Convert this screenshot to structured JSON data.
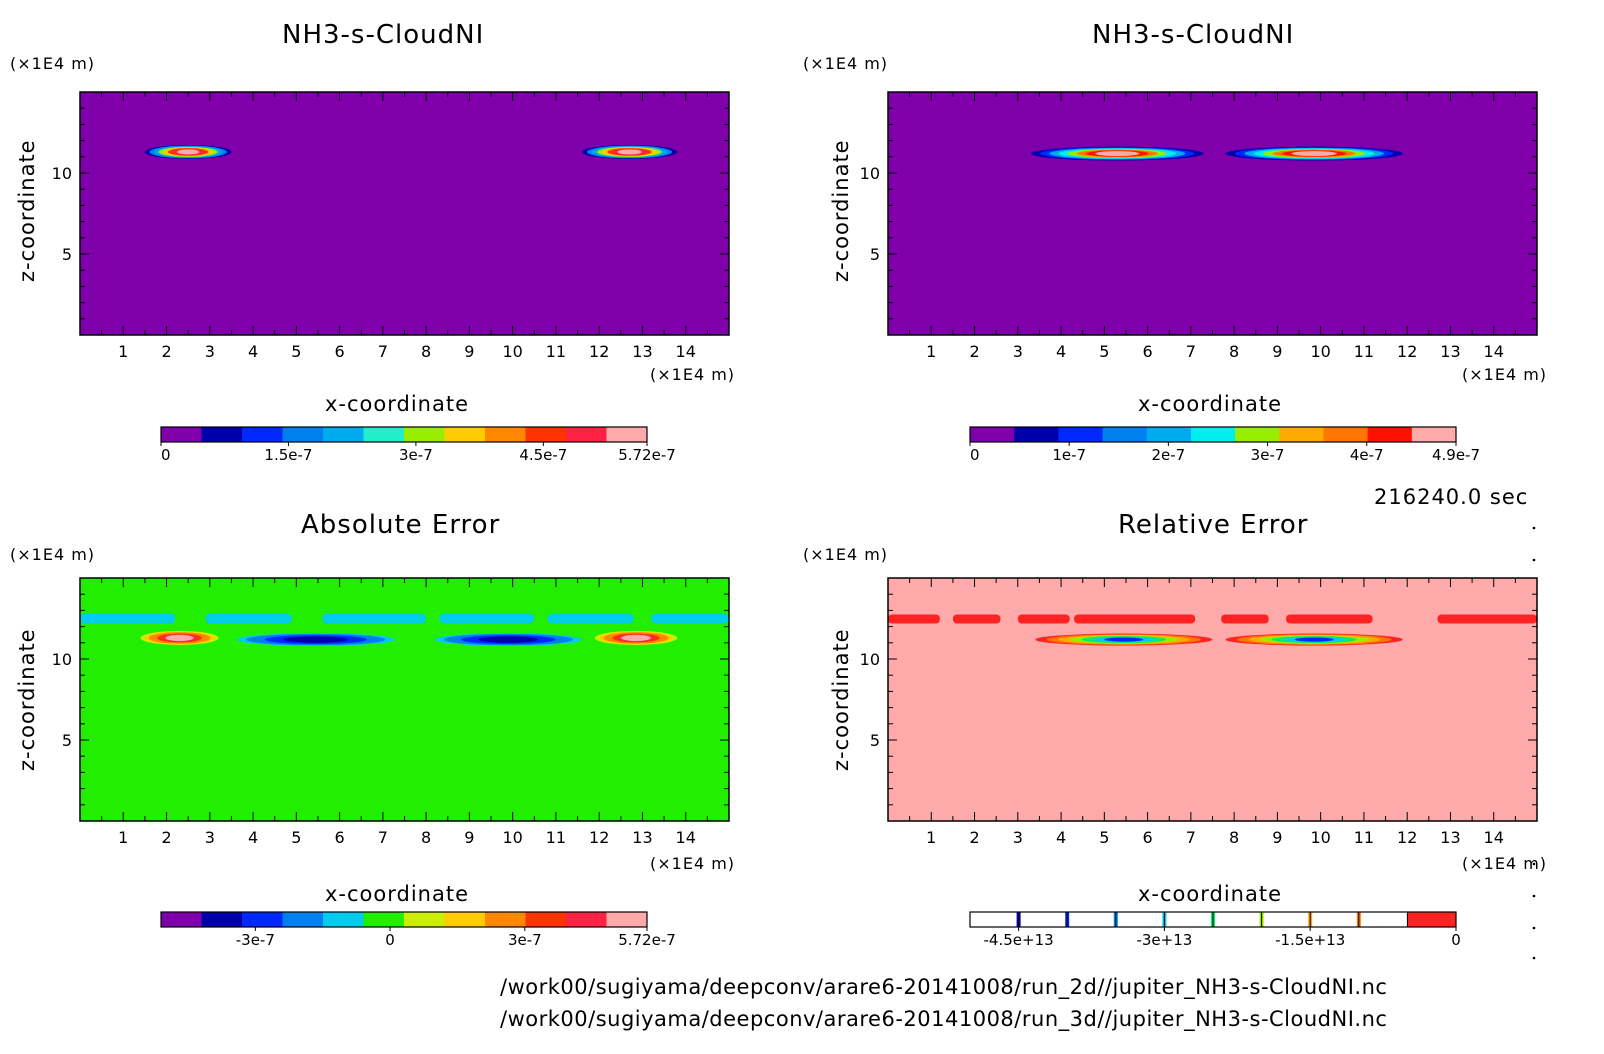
{
  "time_label": "216240.0 sec",
  "footer": {
    "path_2d": "/work00/sugiyama/deepconv/arare6-20141008/run_2d//jupiter_NH3-s-CloudNI.nc",
    "path_3d": "/work00/sugiyama/deepconv/arare6-20141008/run_3d//jupiter_NH3-s-CloudNI.nc"
  },
  "chart_data": [
    {
      "type": "heatmap",
      "title": "NH3-s-CloudNI",
      "xlabel": "x-coordinate",
      "ylabel": "z-coordinate",
      "x_unit": "(×1E4 m)",
      "y_unit": "(×1E4 m)",
      "xlim": [
        0,
        15
      ],
      "ylim": [
        0,
        15
      ],
      "x_ticks": [
        1,
        2,
        3,
        4,
        5,
        6,
        7,
        8,
        9,
        10,
        11,
        12,
        13,
        14
      ],
      "y_ticks": [
        5,
        10
      ],
      "background_color": "#7f00aa",
      "features": [
        {
          "x_range": [
            1.5,
            3.5
          ],
          "z": 11.3,
          "peak": 5.72e-07
        },
        {
          "x_range": [
            11.6,
            13.8
          ],
          "z": 11.3,
          "peak": 5.72e-07
        }
      ],
      "colorbar": {
        "colors": [
          "#7f00aa",
          "#0000aa",
          "#0028ff",
          "#0080ee",
          "#00aaee",
          "#22eecc",
          "#99ee00",
          "#ffcc00",
          "#ff8800",
          "#ff3300",
          "#ff2244",
          "#ffaaaa"
        ],
        "tick_labels": [
          "0",
          "1.5e-7",
          "3e-7",
          "4.5e-7",
          "5.72e-7"
        ],
        "tick_values": [
          0,
          1.5e-07,
          3e-07,
          4.5e-07,
          5.72e-07
        ],
        "vmin": 0,
        "vmax": 5.72e-07
      }
    },
    {
      "type": "heatmap",
      "title": "NH3-s-CloudNI",
      "xlabel": "x-coordinate",
      "ylabel": "z-coordinate",
      "x_unit": "(×1E4 m)",
      "y_unit": "(×1E4 m)",
      "xlim": [
        0,
        15
      ],
      "ylim": [
        0,
        15
      ],
      "x_ticks": [
        1,
        2,
        3,
        4,
        5,
        6,
        7,
        8,
        9,
        10,
        11,
        12,
        13,
        14
      ],
      "y_ticks": [
        5,
        10
      ],
      "background_color": "#7f00aa",
      "features": [
        {
          "x_range": [
            3.3,
            7.3
          ],
          "z": 11.2,
          "peak": 4.9e-07
        },
        {
          "x_range": [
            7.8,
            11.9
          ],
          "z": 11.2,
          "peak": 4.9e-07
        }
      ],
      "colorbar": {
        "colors": [
          "#7f00aa",
          "#0000aa",
          "#0028ff",
          "#0080ee",
          "#00aaee",
          "#00eeee",
          "#99ee00",
          "#ffaa00",
          "#ff7700",
          "#ff1100",
          "#ffaaaa"
        ],
        "tick_labels": [
          "0",
          "1e-7",
          "2e-7",
          "3e-7",
          "4e-7",
          "4.9e-7"
        ],
        "tick_values": [
          0,
          1e-07,
          2e-07,
          3e-07,
          4e-07,
          4.9e-07
        ],
        "vmin": 0,
        "vmax": 4.9e-07
      }
    },
    {
      "type": "heatmap",
      "title": "Absolute Error",
      "xlabel": "x-coordinate",
      "ylabel": "z-coordinate",
      "x_unit": "(×1E4 m)",
      "y_unit": "(×1E4 m)",
      "xlim": [
        0,
        15
      ],
      "ylim": [
        0,
        15
      ],
      "x_ticks": [
        1,
        2,
        3,
        4,
        5,
        6,
        7,
        8,
        9,
        10,
        11,
        12,
        13,
        14
      ],
      "y_ticks": [
        5,
        10
      ],
      "background_color": "#22ee00",
      "features": [
        {
          "x_range": [
            1.4,
            3.2
          ],
          "z": 11.3,
          "peak": 5.72e-07
        },
        {
          "x_range": [
            11.9,
            13.8
          ],
          "z": 11.3,
          "peak": 5.72e-07
        },
        {
          "x_range": [
            3.4,
            7.5
          ],
          "z": 11.2,
          "peak": -4e-07
        },
        {
          "x_range": [
            8.0,
            11.8
          ],
          "z": 11.2,
          "peak": -4e-07
        },
        {
          "x_range": [
            0.0,
            15.0
          ],
          "z": 12.5,
          "peak": -1e-07
        }
      ],
      "colorbar": {
        "colors": [
          "#7f00aa",
          "#0000aa",
          "#0028ff",
          "#0080ee",
          "#00ccee",
          "#22ee00",
          "#ccee00",
          "#ffcc00",
          "#ff8800",
          "#ff3300",
          "#ff2244",
          "#ffaaaa"
        ],
        "tick_labels": [
          "-3e-7",
          "0",
          "3e-7",
          "5.72e-7"
        ],
        "tick_values": [
          -3e-07,
          0,
          3e-07,
          5.72e-07
        ],
        "vmin": -5.1e-07,
        "vmax": 5.72e-07
      }
    },
    {
      "type": "heatmap",
      "title": "Relative Error",
      "xlabel": "x-coordinate",
      "ylabel": "z-coordinate",
      "x_unit": "(×1E4 m)",
      "y_unit": "(×1E4 m)",
      "xlim": [
        0,
        15
      ],
      "ylim": [
        0,
        15
      ],
      "x_ticks": [
        1,
        2,
        3,
        4,
        5,
        6,
        7,
        8,
        9,
        10,
        11,
        12,
        13,
        14
      ],
      "y_ticks": [
        5,
        10
      ],
      "background_color": "#ffaaaa",
      "features": [
        {
          "x_range": [
            3.4,
            7.5
          ],
          "z": 11.2,
          "peak": -45000000000000.0
        },
        {
          "x_range": [
            7.8,
            11.9
          ],
          "z": 11.2,
          "peak": -45000000000000.0
        },
        {
          "x_range": [
            0.0,
            15.0
          ],
          "z": 12.5,
          "peak": 0
        }
      ],
      "colorbar": {
        "style": "contour-lines",
        "line_colors": [
          "#0000aa",
          "#0028ff",
          "#0080ee",
          "#00ccee",
          "#00ee66",
          "#99ee00",
          "#ffaa00",
          "#ff7700"
        ],
        "end_color": "#ff2222",
        "tick_labels": [
          "-4.5e+13",
          "-3e+13",
          "-1.5e+13",
          "0"
        ],
        "tick_values": [
          -45000000000000.0,
          -30000000000000.0,
          -15000000000000.0,
          0
        ],
        "vmin": -50000000000000.0,
        "vmax": 0
      }
    }
  ]
}
